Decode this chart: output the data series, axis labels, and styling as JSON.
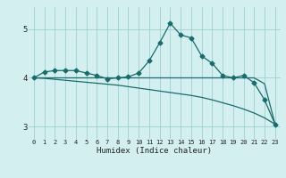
{
  "xlabel": "Humidex (Indice chaleur)",
  "bg_color": "#d4efef",
  "grid_color": "#9ecece",
  "line_color": "#1a6b6b",
  "x": [
    0,
    1,
    2,
    3,
    4,
    5,
    6,
    7,
    8,
    9,
    10,
    11,
    12,
    13,
    14,
    15,
    16,
    17,
    18,
    19,
    20,
    21,
    22,
    23
  ],
  "series1": [
    4.0,
    4.12,
    4.15,
    4.15,
    4.15,
    4.1,
    4.05,
    3.98,
    4.0,
    4.02,
    4.1,
    4.35,
    4.72,
    5.12,
    4.88,
    4.82,
    4.45,
    4.3,
    4.05,
    4.0,
    4.05,
    3.9,
    3.55,
    3.05
  ],
  "series2": [
    4.0,
    4.0,
    4.0,
    4.0,
    4.0,
    4.0,
    4.0,
    4.0,
    4.0,
    4.0,
    4.0,
    4.0,
    4.0,
    4.0,
    4.0,
    4.0,
    4.0,
    4.0,
    4.0,
    4.0,
    4.0,
    4.0,
    3.88,
    3.05
  ],
  "series3": [
    4.0,
    3.99,
    3.97,
    3.95,
    3.93,
    3.91,
    3.89,
    3.87,
    3.85,
    3.82,
    3.79,
    3.76,
    3.73,
    3.7,
    3.67,
    3.64,
    3.6,
    3.55,
    3.49,
    3.43,
    3.36,
    3.28,
    3.18,
    3.05
  ],
  "ylim": [
    2.75,
    5.45
  ],
  "yticks": [
    3,
    4,
    5
  ],
  "xlim": [
    -0.5,
    23.5
  ]
}
